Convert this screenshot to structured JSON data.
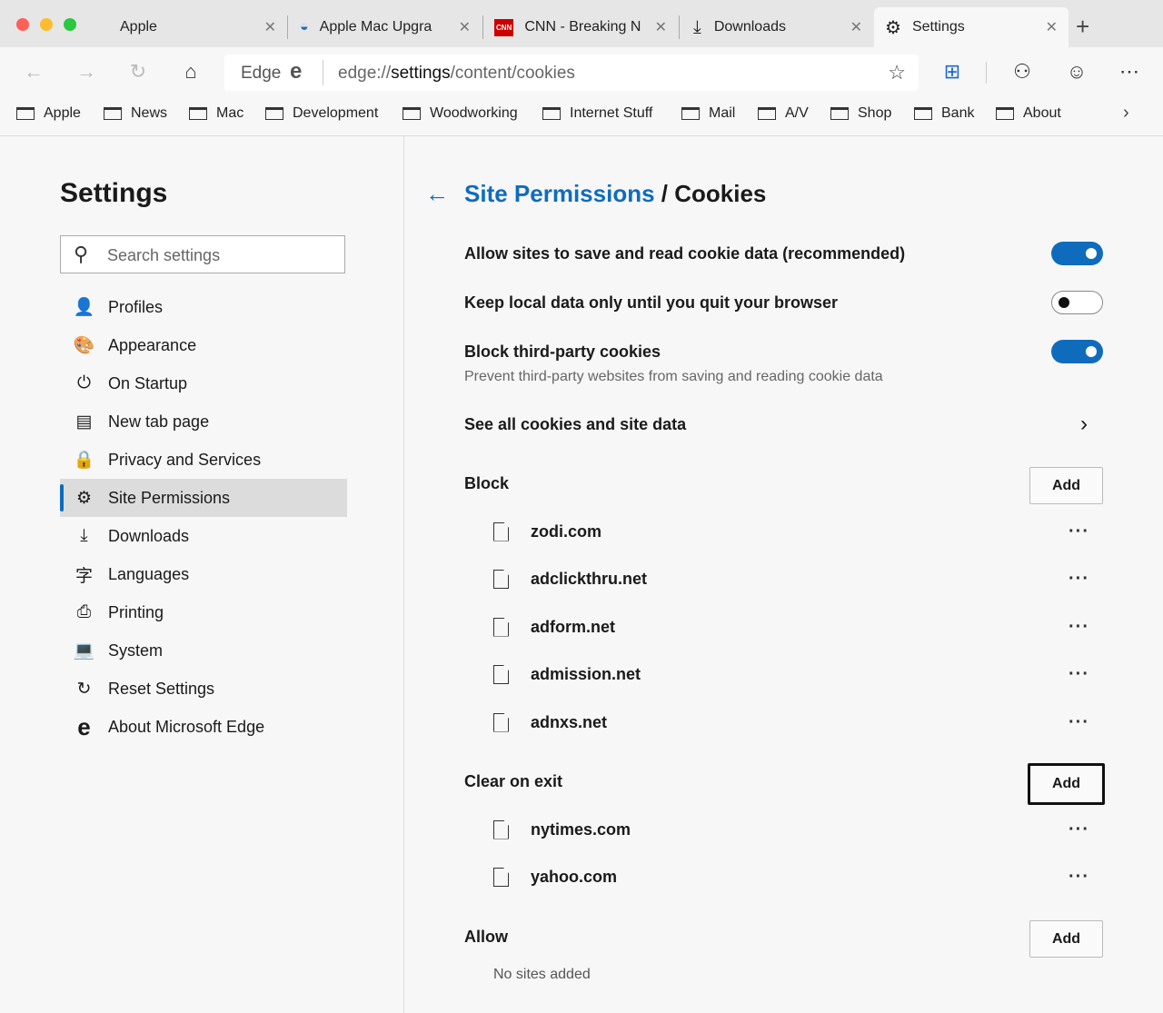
{
  "window": {
    "traffic_colors": [
      "#fe5f57",
      "#febc2e",
      "#28c840"
    ]
  },
  "tabs": [
    {
      "label": "Apple",
      "icon": "apple-icon"
    },
    {
      "label": "Apple Mac Upgra",
      "icon": "site-icon"
    },
    {
      "label": "CNN - Breaking N",
      "icon": "cnn-icon",
      "icon_text": "CNN"
    },
    {
      "label": "Downloads",
      "icon": "download-icon"
    },
    {
      "label": "Settings",
      "icon": "gear-icon",
      "active": true
    }
  ],
  "toolbar": {
    "address_prefix": "Edge",
    "url_pre": "edge://",
    "url_bold": "settings",
    "url_post": "/content/cookies"
  },
  "bookmarks": [
    "Apple",
    "News",
    "Mac",
    "Development",
    "Woodworking",
    "Internet Stuff",
    "Mail",
    "A/V",
    "Shop",
    "Bank",
    "About"
  ],
  "sidebar": {
    "title": "Settings",
    "search_placeholder": "Search settings",
    "items": [
      {
        "label": "Profiles",
        "icon": "👤"
      },
      {
        "label": "Appearance",
        "icon": "🎨"
      },
      {
        "label": "On Startup",
        "icon": "⏻"
      },
      {
        "label": "New tab page",
        "icon": "▤"
      },
      {
        "label": "Privacy and Services",
        "icon": "🔒"
      },
      {
        "label": "Site Permissions",
        "icon": "⚙",
        "selected": true
      },
      {
        "label": "Downloads",
        "icon": "⤓"
      },
      {
        "label": "Languages",
        "icon": "字"
      },
      {
        "label": "Printing",
        "icon": "⎙"
      },
      {
        "label": "System",
        "icon": "💻"
      },
      {
        "label": "Reset Settings",
        "icon": "↻"
      },
      {
        "label": "About Microsoft Edge",
        "icon": "e"
      }
    ]
  },
  "main": {
    "breadcrumb_link": "Site Permissions",
    "breadcrumb_current": " / Cookies",
    "settings": [
      {
        "label": "Allow sites to save and read cookie data (recommended)",
        "on": true
      },
      {
        "label": "Keep local data only until you quit your browser",
        "on": false
      },
      {
        "label": "Block third-party cookies",
        "sub": "Prevent third-party websites from saving and reading cookie data",
        "on": true
      }
    ],
    "see_all": "See all cookies and site data",
    "block": {
      "title": "Block",
      "add": "Add",
      "sites": [
        "zodi.com",
        "adclickthru.net",
        "adform.net",
        "admission.net",
        "adnxs.net"
      ]
    },
    "clear": {
      "title": "Clear on exit",
      "add": "Add",
      "sites": [
        "nytimes.com",
        "yahoo.com"
      ]
    },
    "allow": {
      "title": "Allow",
      "add": "Add",
      "empty": "No sites added"
    },
    "accent": "#0f6cbd"
  }
}
